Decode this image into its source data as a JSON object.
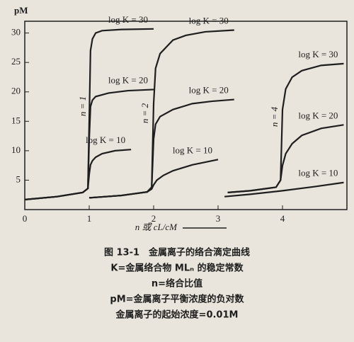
{
  "chart_data": {
    "type": "line",
    "y_label": "pM",
    "x_label": "n 或 cL/cM",
    "xlim": [
      0,
      5
    ],
    "xticks": [
      0,
      1,
      2,
      3,
      4
    ],
    "ylim": [
      0,
      32
    ],
    "yticks": [
      5,
      10,
      15,
      20,
      25,
      30
    ],
    "color": "#1e1e1e",
    "annotations": [
      "n = 1",
      "n = 2",
      "n = 4"
    ],
    "series": [
      {
        "name": "log K = 30",
        "x": [
          0,
          0.5,
          0.9,
          0.98,
          1.0,
          1.02,
          1.05,
          1.1,
          1.2,
          1.5,
          2.0
        ],
        "values": [
          1.7,
          2.2,
          2.9,
          3.6,
          15,
          27,
          29,
          30,
          30.4,
          30.6,
          30.7
        ]
      },
      {
        "name": "log K = 20",
        "x": [
          0,
          0.5,
          0.9,
          0.98,
          1.0,
          1.02,
          1.05,
          1.1,
          1.3,
          1.6,
          2.0
        ],
        "values": [
          1.7,
          2.2,
          2.9,
          3.6,
          12,
          17.5,
          18.6,
          19.2,
          19.8,
          20.2,
          20.4
        ]
      },
      {
        "name": "log K = 10",
        "x": [
          0,
          0.5,
          0.9,
          0.98,
          1.0,
          1.02,
          1.05,
          1.1,
          1.2,
          1.4,
          1.65
        ],
        "values": [
          1.7,
          2.2,
          2.9,
          3.6,
          6,
          7.6,
          8.3,
          8.9,
          9.5,
          10,
          10.2
        ]
      },
      {
        "name": "log K = 30",
        "x": [
          1.0,
          1.5,
          1.9,
          1.97,
          2.0,
          2.03,
          2.1,
          2.3,
          2.5,
          2.8,
          3.25
        ],
        "values": [
          2.0,
          2.4,
          3.0,
          3.8,
          18,
          24,
          26.5,
          28.8,
          29.6,
          30.2,
          30.5
        ]
      },
      {
        "name": "log K = 20",
        "x": [
          1.0,
          1.5,
          1.9,
          1.97,
          2.0,
          2.03,
          2.1,
          2.3,
          2.6,
          2.9,
          3.25
        ],
        "values": [
          2.0,
          2.4,
          3.0,
          3.8,
          12,
          14.5,
          15.8,
          17,
          18,
          18.4,
          18.7
        ]
      },
      {
        "name": "log K = 10",
        "x": [
          1.0,
          1.5,
          1.9,
          1.97,
          2.0,
          2.05,
          2.15,
          2.3,
          2.6,
          3.0
        ],
        "values": [
          2.0,
          2.4,
          3.0,
          3.5,
          4.2,
          5.0,
          5.8,
          6.6,
          7.6,
          8.5
        ]
      },
      {
        "name": "log K = 30",
        "x": [
          3.15,
          3.5,
          3.9,
          3.97,
          4.0,
          4.05,
          4.15,
          4.3,
          4.6,
          4.95
        ],
        "values": [
          2.9,
          3.2,
          3.8,
          5,
          17,
          20.5,
          22.5,
          23.6,
          24.5,
          24.8
        ]
      },
      {
        "name": "log K = 20",
        "x": [
          3.15,
          3.5,
          3.9,
          3.97,
          4.0,
          4.05,
          4.15,
          4.3,
          4.6,
          4.95
        ],
        "values": [
          2.9,
          3.2,
          3.8,
          5,
          7.5,
          9.5,
          11.2,
          12.6,
          13.8,
          14.4
        ]
      },
      {
        "name": "log K = 10",
        "x": [
          3.1,
          3.5,
          4.0,
          4.5,
          4.95
        ],
        "values": [
          2.2,
          2.6,
          3.2,
          3.9,
          4.6
        ]
      }
    ],
    "caption": [
      "图 13-1　金属离子的络合滴定曲线",
      "K=金属络合物 MLₙ 的稳定常数",
      "n=络合比值",
      "pM=金属离子平衡浓度的负对数",
      "金属离子的起始浓度=0.01M"
    ]
  }
}
